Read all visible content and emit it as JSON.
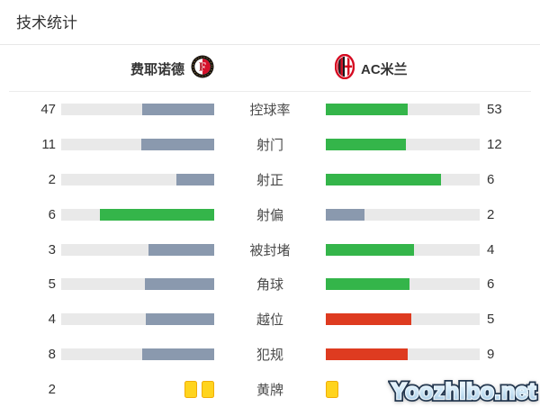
{
  "title": "技术统计",
  "teams": {
    "home": {
      "name": "费耶诺德",
      "logo": "feyenoord-crest"
    },
    "away": {
      "name": "AC米兰",
      "logo": "ac-milan-crest"
    }
  },
  "colors": {
    "slate": "#8a99ae",
    "green": "#34b54a",
    "red": "#de3b20",
    "track": "#e9e9e9",
    "card_fill": "#ffd41e",
    "card_border": "#f0ad08",
    "text": "#333333",
    "watermark_outline": "#22364e",
    "watermark_fill": "#cfe7f6"
  },
  "chart_data": {
    "type": "bar",
    "title": "技术统计",
    "teams": [
      "费耶诺德",
      "AC米兰"
    ],
    "layout": {
      "home_bars_anchor": "right",
      "away_bars_anchor": "left",
      "fill_percent_rule": "value / (home + away) * 100"
    },
    "rows": [
      {
        "label": "控球率",
        "home": 47,
        "away": 53,
        "home_color": "slate",
        "away_color": "green"
      },
      {
        "label": "射门",
        "home": 11,
        "away": 12,
        "home_color": "slate",
        "away_color": "green"
      },
      {
        "label": "射正",
        "home": 2,
        "away": 6,
        "home_color": "slate",
        "away_color": "green"
      },
      {
        "label": "射偏",
        "home": 6,
        "away": 2,
        "home_color": "green",
        "away_color": "slate"
      },
      {
        "label": "被封堵",
        "home": 3,
        "away": 4,
        "home_color": "slate",
        "away_color": "green"
      },
      {
        "label": "角球",
        "home": 5,
        "away": 6,
        "home_color": "slate",
        "away_color": "green"
      },
      {
        "label": "越位",
        "home": 4,
        "away": 5,
        "home_color": "slate",
        "away_color": "red"
      },
      {
        "label": "犯规",
        "home": 8,
        "away": 9,
        "home_color": "slate",
        "away_color": "red"
      },
      {
        "label": "黄牌",
        "type": "cards",
        "home_value": "2",
        "home_cards": 2,
        "away_cards": 1,
        "away_value": ""
      }
    ]
  },
  "watermark": {
    "text": "Yoozhibo.net"
  }
}
